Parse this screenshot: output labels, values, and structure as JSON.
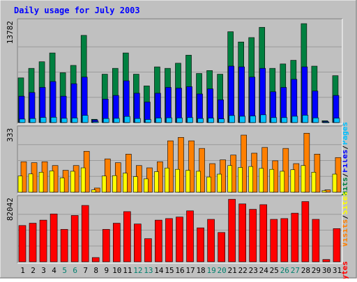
{
  "chart_data": [
    {
      "type": "bar",
      "title": "Daily usage for July 2003",
      "max_label": "13782",
      "ylim": [
        0,
        13782
      ],
      "right_labels": [
        "Pages",
        "Files",
        "Hits"
      ],
      "right_label_sep": "/",
      "categories": [
        "1",
        "2",
        "3",
        "4",
        "5",
        "6",
        "7",
        "8",
        "9",
        "10",
        "11",
        "12",
        "13",
        "14",
        "15",
        "16",
        "17",
        "18",
        "19",
        "20",
        "21",
        "22",
        "23",
        "24",
        "25",
        "26",
        "27",
        "28",
        "29",
        "30",
        "31"
      ],
      "series": [
        {
          "name": "Hits",
          "color": "#008040",
          "values": [
            6100,
            7400,
            8300,
            9500,
            6800,
            7800,
            11900,
            450,
            6600,
            7400,
            9500,
            6600,
            5000,
            7600,
            7400,
            8100,
            9200,
            6700,
            7100,
            6600,
            12400,
            11000,
            11600,
            13000,
            7400,
            8000,
            8500,
            13500,
            7700,
            250,
            6400
          ]
        },
        {
          "name": "Files",
          "color": "#0000ff",
          "values": [
            3600,
            4100,
            4800,
            5600,
            3600,
            5300,
            6200,
            350,
            3200,
            3700,
            5700,
            4000,
            2800,
            4000,
            4800,
            4700,
            4900,
            3900,
            4600,
            3100,
            7700,
            7600,
            6200,
            7400,
            4200,
            4800,
            5900,
            7600,
            4300,
            150,
            3700
          ]
        },
        {
          "name": "Pages",
          "color": "#00c0ff",
          "values": [
            480,
            560,
            700,
            720,
            580,
            620,
            980,
            120,
            560,
            580,
            840,
            560,
            420,
            620,
            650,
            630,
            680,
            560,
            600,
            500,
            960,
            860,
            900,
            1060,
            680,
            680,
            860,
            1000,
            640,
            60,
            600
          ]
        }
      ],
      "weekend_categories": [
        "5",
        "6",
        "12",
        "13",
        "19",
        "20",
        "26",
        "27"
      ]
    },
    {
      "type": "bar",
      "max_label": "333",
      "ylim": [
        0,
        333
      ],
      "right_labels": [
        "Sites",
        "Visits"
      ],
      "right_label_sep": "/",
      "categories": [
        "1",
        "2",
        "3",
        "4",
        "5",
        "6",
        "7",
        "8",
        "9",
        "10",
        "11",
        "12",
        "13",
        "14",
        "15",
        "16",
        "17",
        "18",
        "19",
        "20",
        "21",
        "22",
        "23",
        "24",
        "25",
        "26",
        "27",
        "28",
        "29",
        "30",
        "31"
      ],
      "series": [
        {
          "name": "Visits",
          "color": "#ff8000",
          "values": [
            160,
            155,
            160,
            140,
            115,
            140,
            215,
            22,
            175,
            155,
            200,
            140,
            128,
            160,
            270,
            288,
            270,
            230,
            150,
            170,
            195,
            300,
            205,
            235,
            165,
            230,
            150,
            310,
            200,
            12,
            182
          ]
        },
        {
          "name": "Sites",
          "color": "#ffff00",
          "values": [
            85,
            96,
            105,
            112,
            75,
            110,
            128,
            12,
            85,
            87,
            100,
            82,
            70,
            108,
            127,
            120,
            115,
            110,
            80,
            95,
            140,
            130,
            135,
            125,
            120,
            110,
            118,
            140,
            105,
            8,
            95
          ]
        }
      ]
    },
    {
      "type": "bar",
      "max_label": "82042",
      "ylim": [
        0,
        82042
      ],
      "right_labels": [
        "KBytes"
      ],
      "right_label_sep": "",
      "categories": [
        "1",
        "2",
        "3",
        "4",
        "5",
        "6",
        "7",
        "8",
        "9",
        "10",
        "11",
        "12",
        "13",
        "14",
        "15",
        "16",
        "17",
        "18",
        "19",
        "20",
        "21",
        "22",
        "23",
        "24",
        "25",
        "26",
        "27",
        "28",
        "29",
        "30",
        "31"
      ],
      "series": [
        {
          "name": "KBytes",
          "color": "#ff0000",
          "values": [
            47000,
            50000,
            54000,
            62000,
            42000,
            60000,
            73000,
            5500,
            42000,
            50000,
            65000,
            49000,
            30000,
            54000,
            56000,
            58000,
            66000,
            44000,
            55000,
            38000,
            81000,
            75000,
            68000,
            74000,
            55000,
            56000,
            63000,
            78000,
            55000,
            3000,
            43000
          ]
        }
      ]
    }
  ],
  "colors": {
    "background": "#c0c0c0",
    "title": "#0000ff",
    "weekday_label": "#000000",
    "weekend_label": "#00806e"
  }
}
